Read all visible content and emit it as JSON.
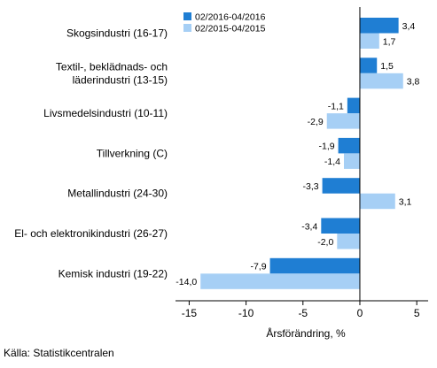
{
  "chart_data": {
    "type": "bar",
    "orientation": "horizontal",
    "categories": [
      [
        "Skogsindustri (16-17)"
      ],
      [
        "Textil-, beklädnads- och",
        "läderindustri (13-15)"
      ],
      [
        "Livsmedelsindustri (10-11)"
      ],
      [
        "Tillverkning (C)"
      ],
      [
        "Metallindustri (24-30)"
      ],
      [
        "El- och elektronikindustri (26-27)"
      ],
      [
        "Kemisk industri (19-22)"
      ]
    ],
    "series": [
      {
        "name": "02/2016-04/2016",
        "color": "#1f7ed3",
        "values": [
          3.4,
          1.5,
          -1.1,
          -1.9,
          -3.3,
          -3.4,
          -7.9
        ],
        "labels": [
          "3,4",
          "1,5",
          "-1,1",
          "-1,9",
          "-3,3",
          "-3,4",
          "-7,9"
        ]
      },
      {
        "name": "02/2015-04/2015",
        "color": "#a6cff5",
        "values": [
          1.7,
          3.8,
          -2.9,
          -1.4,
          3.1,
          -2.0,
          -14.0
        ],
        "labels": [
          "1,7",
          "3,8",
          "-2,9",
          "-1,4",
          "3,1",
          "-2,0",
          "-14,0"
        ]
      }
    ],
    "xlim": [
      -16.2,
      6
    ],
    "xticks": [
      -15,
      -10,
      -5,
      0,
      5
    ],
    "xtick_labels": [
      "-15",
      "-10",
      "-5",
      "0",
      "5"
    ],
    "xlabel": "Årsförändring, %",
    "legend_position": "top"
  },
  "source": "Källa: Statistikcentralen"
}
